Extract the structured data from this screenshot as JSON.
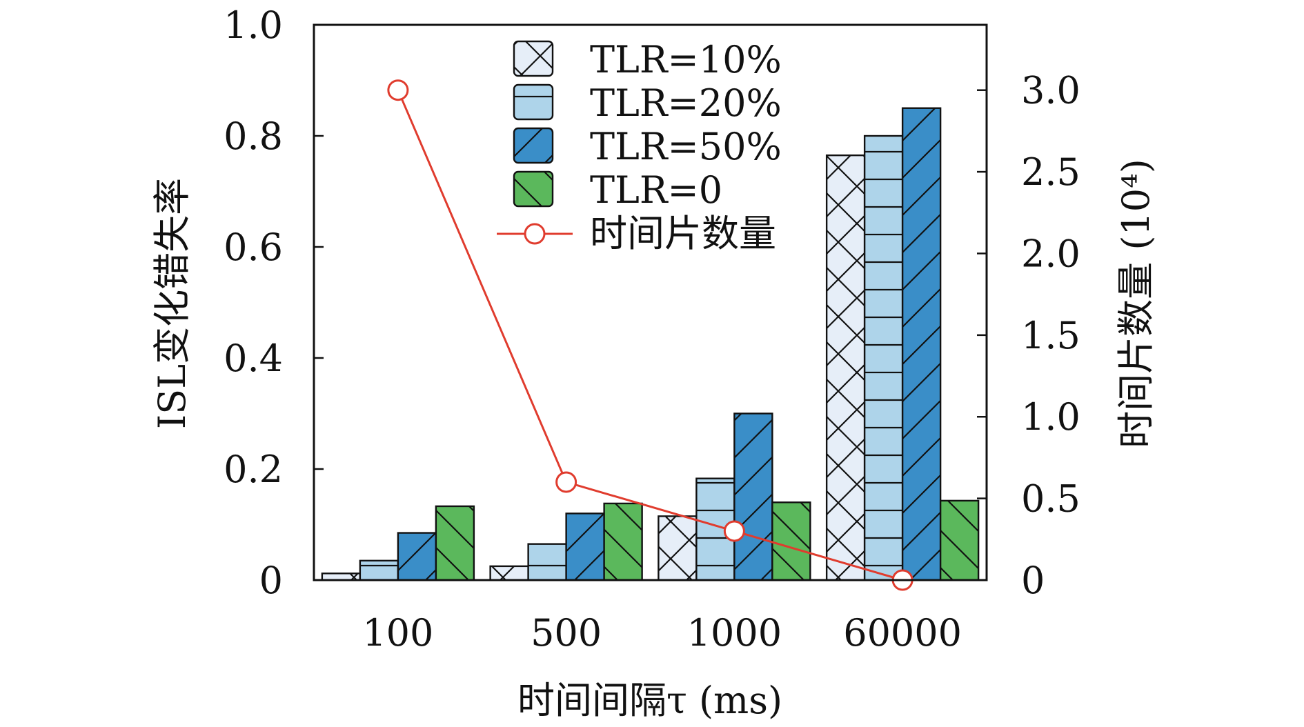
{
  "chart_data": {
    "type": "bar",
    "xlabel": "时间间隔τ (ms)",
    "ylabel": "ISL变化错失率",
    "y2label": "时间片数量 (10⁴)",
    "categories": [
      "100",
      "500",
      "1000",
      "60000"
    ],
    "ylim": [
      0,
      1.0
    ],
    "y2lim": [
      0,
      3.4
    ],
    "yticks": [
      "0",
      "0.2",
      "0.4",
      "0.6",
      "0.8",
      "1.0"
    ],
    "y2ticks": [
      "0",
      "0.5",
      "1.0",
      "1.5",
      "2.0",
      "2.5",
      "3.0"
    ],
    "series": [
      {
        "name": "TLR=10%",
        "values": [
          0.012,
          0.025,
          0.115,
          0.765
        ],
        "color": "#e6eef8",
        "hatch": "cross"
      },
      {
        "name": "TLR=20%",
        "values": [
          0.035,
          0.065,
          0.183,
          0.8
        ],
        "color": "#aed4ea",
        "hatch": "horizontal"
      },
      {
        "name": "TLR=50%",
        "values": [
          0.085,
          0.12,
          0.3,
          0.85
        ],
        "color": "#3a8ec8",
        "hatch": "forward"
      },
      {
        "name": "TLR=0",
        "values": [
          0.133,
          0.138,
          0.14,
          0.143
        ],
        "color": "#5bb85c",
        "hatch": "backward"
      }
    ],
    "line_series": {
      "name": "时间片数量",
      "axis": "right",
      "color": "#e03c2e",
      "values": [
        3.0,
        0.6,
        0.3,
        0.0
      ]
    },
    "legend_position": "top-center",
    "grid": false
  }
}
